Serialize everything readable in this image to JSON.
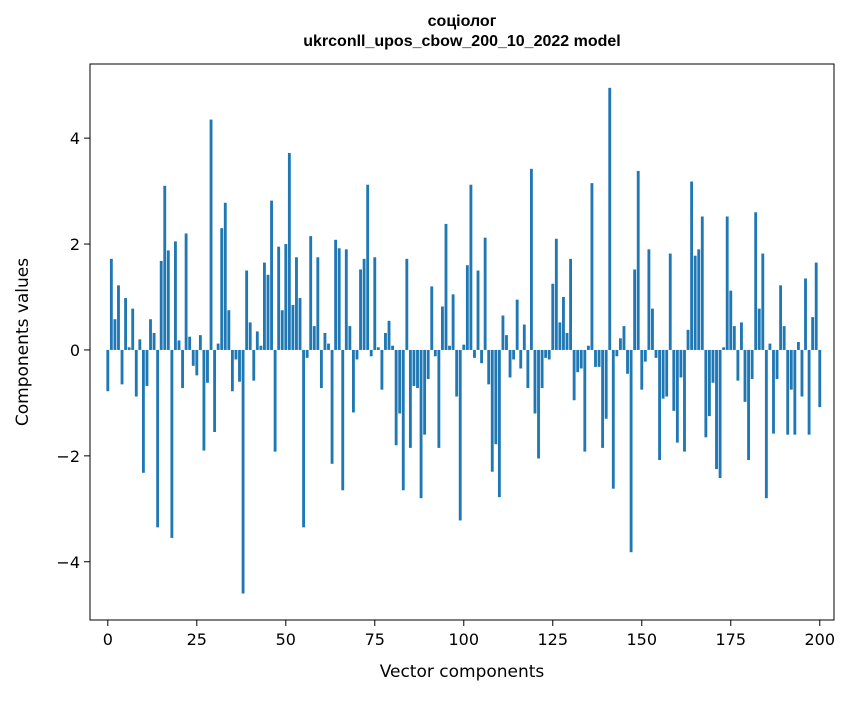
{
  "chart_data": {
    "type": "bar",
    "title": "соціолог",
    "subtitle": "ukrconll_upos_cbow_200_10_2022 model",
    "xlabel": "Vector components",
    "ylabel": "Components values",
    "xlim": [
      -5,
      204
    ],
    "ylim": [
      -5.1,
      5.4
    ],
    "xticks": [
      0,
      25,
      50,
      75,
      100,
      125,
      150,
      175,
      200
    ],
    "yticks": [
      -4,
      -2,
      0,
      2,
      4
    ],
    "xtick_labels": [
      "0",
      "25",
      "50",
      "75",
      "100",
      "125",
      "150",
      "175",
      "200"
    ],
    "ytick_labels": [
      "−4",
      "−2",
      "0",
      "2",
      "4"
    ],
    "bar_color": "#1f77b4",
    "grid": false,
    "values": [
      -0.78,
      1.72,
      0.58,
      1.22,
      -0.65,
      0.98,
      0.05,
      0.78,
      -0.88,
      0.2,
      -2.32,
      -0.68,
      0.58,
      0.32,
      -3.35,
      1.68,
      3.1,
      1.88,
      -3.55,
      2.05,
      0.18,
      -0.72,
      2.2,
      0.25,
      -0.3,
      -0.48,
      0.28,
      -1.9,
      -0.62,
      4.35,
      -1.55,
      0.12,
      2.3,
      2.78,
      0.75,
      -0.78,
      -0.18,
      -0.6,
      -4.6,
      1.5,
      0.52,
      -0.58,
      0.35,
      0.08,
      1.65,
      1.42,
      2.82,
      -1.92,
      1.95,
      0.75,
      2.0,
      3.72,
      0.85,
      1.75,
      0.98,
      -3.35,
      -0.15,
      2.15,
      0.45,
      1.75,
      -0.72,
      0.32,
      0.12,
      -2.15,
      2.08,
      1.92,
      -2.65,
      1.9,
      0.45,
      -1.18,
      -0.18,
      1.52,
      1.72,
      3.12,
      -0.12,
      1.75,
      0.05,
      -0.75,
      0.32,
      0.55,
      0.08,
      -1.8,
      -1.2,
      -2.65,
      1.72,
      -1.85,
      -0.68,
      -0.72,
      -2.8,
      -1.6,
      -0.55,
      1.2,
      -0.12,
      -1.85,
      0.82,
      2.38,
      0.08,
      1.05,
      -0.88,
      -3.22,
      0.1,
      1.6,
      3.12,
      -0.15,
      1.5,
      -0.25,
      2.12,
      -0.65,
      -2.3,
      -1.78,
      -2.78,
      0.65,
      0.28,
      -0.52,
      -0.18,
      0.95,
      -0.35,
      0.48,
      -0.72,
      3.42,
      -1.2,
      -2.05,
      -0.72,
      -0.15,
      -0.18,
      1.25,
      2.1,
      0.52,
      1.0,
      0.32,
      1.72,
      -0.95,
      -0.42,
      -0.35,
      -1.92,
      0.08,
      3.15,
      -0.32,
      -0.32,
      -1.85,
      -1.3,
      4.95,
      -2.62,
      -0.12,
      0.22,
      0.45,
      -0.45,
      -3.82,
      1.52,
      3.38,
      -0.75,
      -0.22,
      1.9,
      0.78,
      -0.15,
      -2.08,
      -0.92,
      -0.88,
      1.82,
      -1.15,
      -1.75,
      -0.52,
      -1.92,
      0.38,
      3.18,
      1.78,
      1.9,
      2.52,
      -1.65,
      -1.25,
      -0.62,
      -2.25,
      -2.42,
      0.05,
      2.52,
      1.12,
      0.45,
      -0.58,
      0.52,
      -0.98,
      -2.08,
      -0.55,
      2.6,
      0.78,
      1.82,
      -2.8,
      0.12,
      -1.58,
      -0.55,
      1.22,
      0.45,
      -1.6,
      -0.75,
      -1.6,
      0.15,
      -0.88,
      1.35,
      -1.6,
      0.62,
      1.65,
      -1.08
    ]
  }
}
